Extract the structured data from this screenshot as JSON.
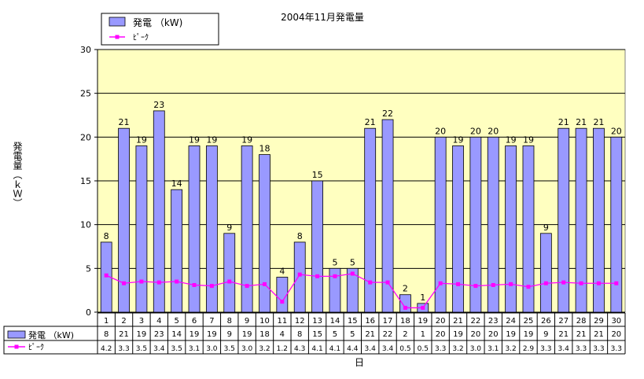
{
  "chart_data": {
    "type": "bar",
    "title": "2004年11月発電量",
    "xlabel": "日",
    "ylabel": "発電量（ｋＷ）",
    "ylim": [
      0,
      30
    ],
    "yticks": [
      "0",
      "5",
      "10",
      "15",
      "20",
      "25",
      "30"
    ],
    "grid": true,
    "legend_position": "top-left",
    "plot_background": "#ffffc0",
    "bar_color": "#9999ff",
    "line_color": "#ff00ff",
    "categories": [
      "1",
      "2",
      "3",
      "4",
      "5",
      "6",
      "7",
      "8",
      "9",
      "10",
      "11",
      "12",
      "13",
      "14",
      "15",
      "16",
      "17",
      "18",
      "19",
      "20",
      "21",
      "22",
      "23",
      "24",
      "25",
      "26",
      "27",
      "28",
      "29",
      "30"
    ],
    "series": [
      {
        "name": "発電 （kW)",
        "type": "bar",
        "values": [
          8,
          21,
          19,
          23,
          14,
          19,
          19,
          9,
          19,
          18,
          4,
          8,
          15,
          5,
          5,
          21,
          22,
          2,
          1,
          20,
          19,
          20,
          20,
          19,
          19,
          9,
          21,
          21,
          21,
          20
        ],
        "table_labels": [
          "8",
          "21",
          "19",
          "23",
          "14",
          "19",
          "19",
          "9",
          "19",
          "18",
          "4",
          "8",
          "15",
          "5",
          "5",
          "21",
          "22",
          "2",
          "1",
          "20",
          "19",
          "20",
          "20",
          "19",
          "19",
          "9",
          "21",
          "21",
          "21",
          "20"
        ],
        "data_labels": [
          "8",
          "21",
          "19",
          "23",
          "14",
          "19",
          "19",
          "9",
          "19",
          "18",
          "4",
          "8",
          "15",
          "5",
          "5",
          "21",
          "22",
          "2",
          "1",
          "20",
          "19",
          "20",
          "20",
          "19",
          "19",
          "9",
          "21",
          "21",
          "21",
          "20"
        ]
      },
      {
        "name": "ﾋﾟｰｸ",
        "type": "line",
        "values": [
          4.2,
          3.3,
          3.5,
          3.4,
          3.5,
          3.1,
          3.0,
          3.5,
          3.0,
          3.2,
          1.2,
          4.3,
          4.1,
          4.1,
          4.4,
          3.4,
          3.4,
          0.5,
          0.5,
          3.3,
          3.2,
          3.0,
          3.1,
          3.2,
          2.9,
          3.3,
          3.4,
          3.3,
          3.3,
          3.3
        ],
        "table_labels": [
          "4.2",
          "3.3",
          "3.5",
          "3.4",
          "3.5",
          "3.1",
          "3.0",
          "3.5",
          "3.0",
          "3.2",
          "1.2",
          "4.3",
          "4.1",
          "4.1",
          "4.4",
          "3.4",
          "3.4",
          "0.5",
          "0.5",
          "3.3",
          "3.2",
          "3.0",
          "3.1",
          "3.2",
          "2.9",
          "3.3",
          "3.4",
          "3.3",
          "3.3",
          "3.3"
        ]
      }
    ]
  }
}
